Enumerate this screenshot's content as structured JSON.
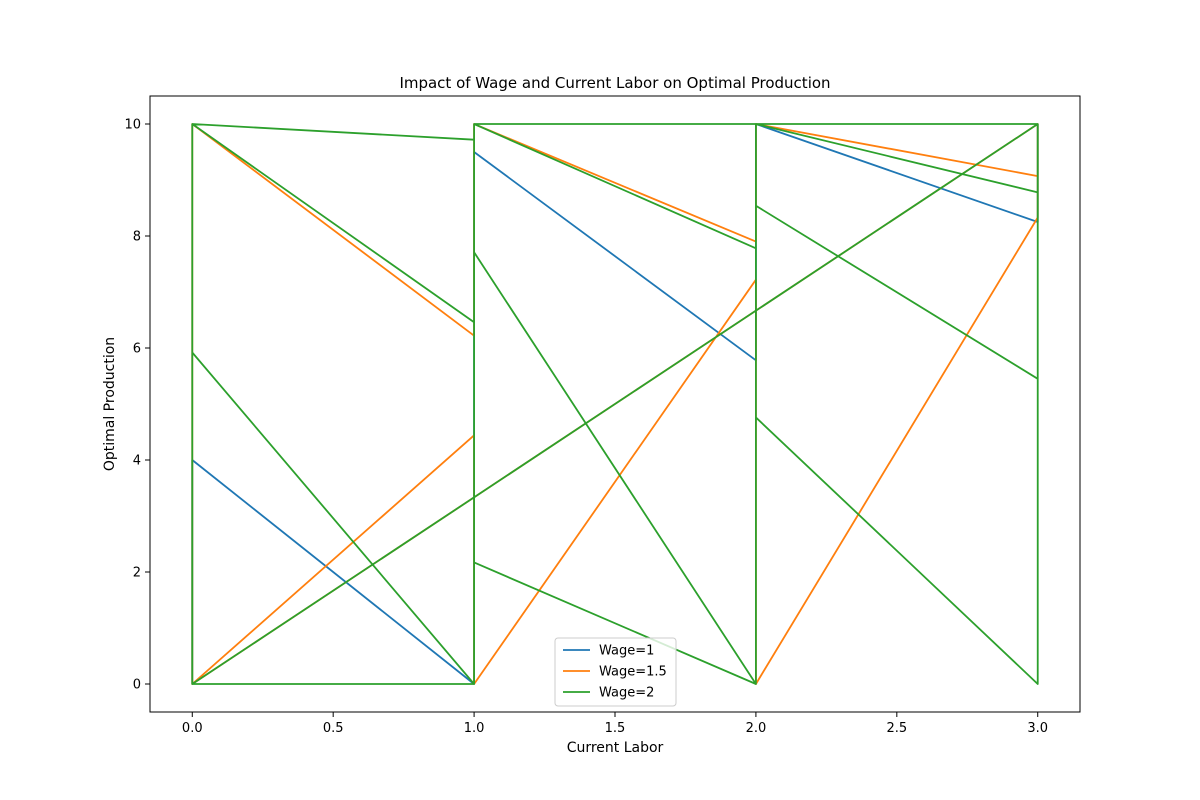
{
  "chart_data": {
    "type": "line",
    "title": "Impact of Wage and Current Labor on Optimal Production",
    "xlabel": "Current Labor",
    "ylabel": "Optimal Production",
    "xlim": [
      -0.15,
      3.15
    ],
    "ylim": [
      -0.5,
      10.5
    ],
    "xticks": [
      0.0,
      0.5,
      1.0,
      1.5,
      2.0,
      2.5,
      3.0
    ],
    "xtick_labels": [
      "0.0",
      "0.5",
      "1.0",
      "1.5",
      "2.0",
      "2.5",
      "3.0"
    ],
    "yticks": [
      0,
      2,
      4,
      6,
      8,
      10
    ],
    "ytick_labels": [
      "0",
      "2",
      "4",
      "6",
      "8",
      "10"
    ],
    "grid": false,
    "legend_position": "bottom-center",
    "series": [
      {
        "name": "Wage=1",
        "color": "#1f77b4",
        "x": [
          0,
          0,
          1,
          1,
          2,
          2,
          3,
          3
        ],
        "y": [
          0,
          4.0,
          0,
          9.5,
          5.78,
          10,
          8.25,
          10
        ]
      },
      {
        "name": "Wage=1.5",
        "color": "#ff7f0e",
        "x": [
          0,
          0,
          1,
          1,
          2,
          2,
          3,
          3,
          0,
          0,
          1,
          1,
          2,
          2,
          3,
          3
        ],
        "y": [
          0,
          10,
          6.22,
          10,
          7.9,
          10,
          9.07,
          10,
          0,
          0,
          4.44,
          0,
          7.22,
          0,
          8.33,
          10
        ]
      },
      {
        "name": "Wage=2",
        "color": "#2ca02c",
        "x": [
          0,
          0,
          1,
          1,
          2,
          2,
          3,
          3,
          0,
          0,
          1,
          1,
          2,
          2,
          3,
          3,
          0,
          0,
          1,
          1,
          2,
          2,
          3,
          3,
          0,
          0,
          1,
          1,
          2,
          2,
          3,
          3
        ],
        "y": [
          0,
          10,
          6.46,
          10,
          7.78,
          10,
          8.78,
          10,
          0,
          5.92,
          0,
          7.71,
          0,
          8.54,
          5.45,
          10,
          0,
          0,
          0,
          2.17,
          0,
          4.76,
          0,
          10,
          0,
          10,
          9.72,
          10,
          10,
          10,
          10,
          8.52
        ]
      }
    ]
  }
}
